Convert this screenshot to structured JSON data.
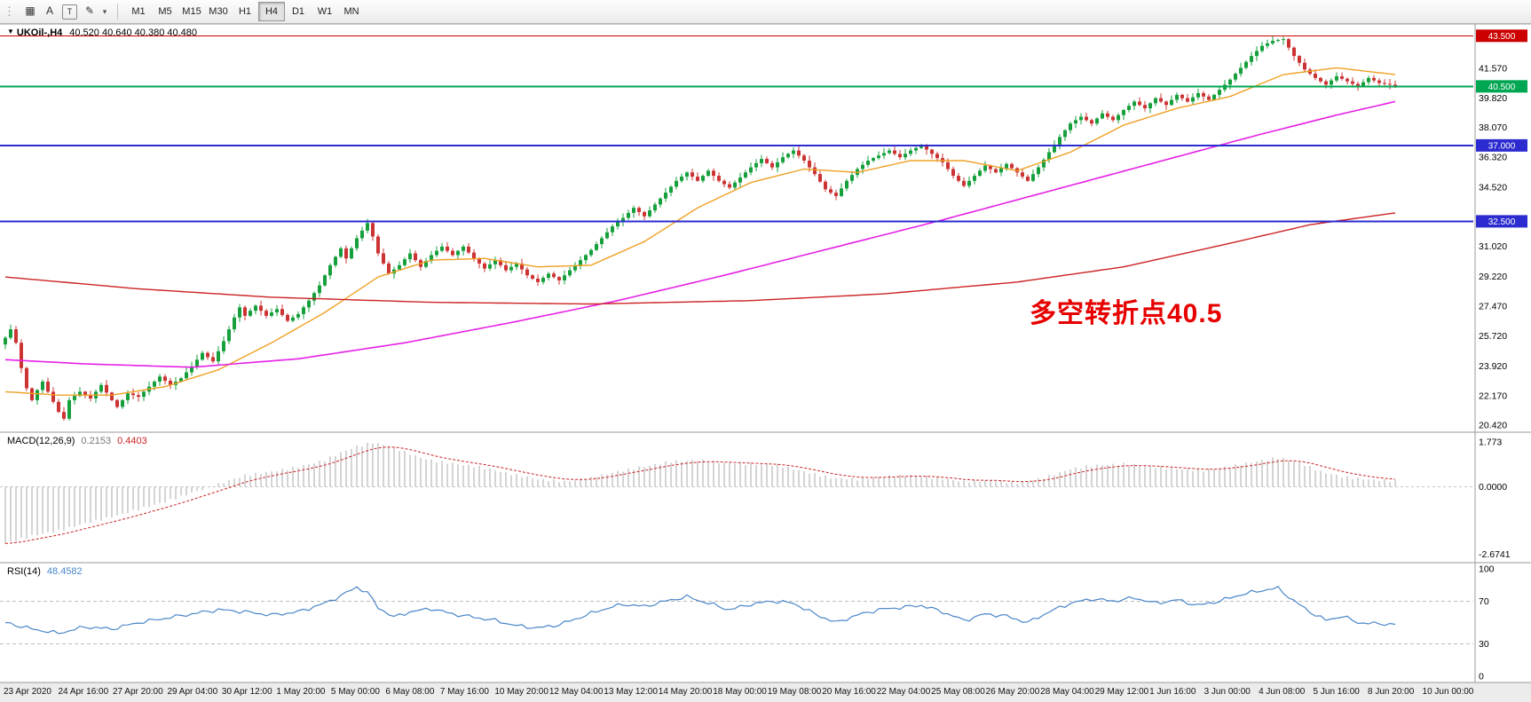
{
  "toolbar": {
    "grip": "⋮",
    "icons": [
      {
        "name": "charts-grid-icon",
        "glyph": "▦",
        "boxed": false
      },
      {
        "name": "text-label-icon",
        "glyph": "A",
        "boxed": false
      },
      {
        "name": "text-box-icon",
        "glyph": "T",
        "boxed": true
      },
      {
        "name": "draw-tools-icon",
        "glyph": "✎",
        "boxed": false
      },
      {
        "name": "draw-tools-caret-icon",
        "glyph": "▾",
        "boxed": false
      }
    ],
    "timeframes": [
      "M1",
      "M5",
      "M15",
      "M30",
      "H1",
      "H4",
      "D1",
      "W1",
      "MN"
    ],
    "active_timeframe": "H4"
  },
  "header": {
    "menu_icon": "▼",
    "symbol": "UKOil-,H4",
    "ohlc": "40.520 40.640 40.380 40.480"
  },
  "macd_header": {
    "name": "MACD(12,26,9)",
    "main": "0.2153",
    "signal": "0.4403"
  },
  "rsi_header": {
    "name": "RSI(14)",
    "value": "48.4582"
  },
  "annotation": {
    "text": "多空转折点40.5",
    "color": "#e60000"
  },
  "colors": {
    "up": "#16a03c",
    "down": "#cc3333",
    "ma_fast": "#efa024",
    "ma_mid": "#e621e6",
    "ma_slow": "#cc2222",
    "macd_hist": "#a9a9a9",
    "macd_signal": "#cc2222",
    "macd_zero": "#c8c8c8",
    "rsi_line": "#4a86c8",
    "rsi_level": "#bbbbbb",
    "badge_text": "#ffffff",
    "axis_text": "#000000",
    "border": "#999999",
    "timeline_bg": "#ececec"
  },
  "chart_data": {
    "type": "candlestick",
    "title": "UKOil-,H4",
    "symbol": "UKOil-",
    "timeframe": "H4",
    "ohlc_current": {
      "open": 40.52,
      "high": 40.64,
      "low": 40.38,
      "close": 40.48
    },
    "bars": 262,
    "price_range": [
      20.0,
      44.2
    ],
    "close_waypoints": [
      [
        0,
        25.6
      ],
      [
        1,
        26.1
      ],
      [
        2,
        25.3
      ],
      [
        3,
        23.8
      ],
      [
        4,
        22.6
      ],
      [
        5,
        21.9
      ],
      [
        6,
        22.5
      ],
      [
        7,
        23.0
      ],
      [
        8,
        22.4
      ],
      [
        10,
        21.2
      ],
      [
        11,
        20.8
      ],
      [
        12,
        21.9
      ],
      [
        14,
        22.4
      ],
      [
        16,
        22.0
      ],
      [
        18,
        22.8
      ],
      [
        20,
        21.9
      ],
      [
        21,
        21.5
      ],
      [
        23,
        22.3
      ],
      [
        25,
        22.1
      ],
      [
        27,
        22.7
      ],
      [
        29,
        23.3
      ],
      [
        31,
        22.8
      ],
      [
        33,
        23.2
      ],
      [
        35,
        23.9
      ],
      [
        37,
        24.7
      ],
      [
        39,
        24.2
      ],
      [
        41,
        25.4
      ],
      [
        43,
        26.8
      ],
      [
        44,
        27.4
      ],
      [
        45,
        26.9
      ],
      [
        47,
        27.5
      ],
      [
        49,
        26.9
      ],
      [
        51,
        27.3
      ],
      [
        53,
        26.6
      ],
      [
        55,
        27.0
      ],
      [
        57,
        27.8
      ],
      [
        59,
        28.7
      ],
      [
        61,
        29.9
      ],
      [
        63,
        30.9
      ],
      [
        64,
        30.3
      ],
      [
        66,
        31.5
      ],
      [
        68,
        32.4
      ],
      [
        69,
        31.6
      ],
      [
        70,
        30.6
      ],
      [
        72,
        29.4
      ],
      [
        74,
        29.9
      ],
      [
        76,
        30.6
      ],
      [
        78,
        29.8
      ],
      [
        80,
        30.5
      ],
      [
        82,
        31.0
      ],
      [
        84,
        30.5
      ],
      [
        86,
        31.0
      ],
      [
        88,
        30.3
      ],
      [
        90,
        29.7
      ],
      [
        92,
        30.2
      ],
      [
        94,
        29.6
      ],
      [
        96,
        30.0
      ],
      [
        98,
        29.3
      ],
      [
        100,
        28.9
      ],
      [
        102,
        29.4
      ],
      [
        104,
        29.0
      ],
      [
        106,
        29.6
      ],
      [
        108,
        30.2
      ],
      [
        110,
        30.8
      ],
      [
        112,
        31.5
      ],
      [
        114,
        32.2
      ],
      [
        116,
        32.7
      ],
      [
        118,
        33.3
      ],
      [
        120,
        32.8
      ],
      [
        122,
        33.5
      ],
      [
        124,
        34.2
      ],
      [
        126,
        34.9
      ],
      [
        128,
        35.4
      ],
      [
        130,
        34.9
      ],
      [
        132,
        35.5
      ],
      [
        134,
        34.9
      ],
      [
        136,
        34.5
      ],
      [
        138,
        35.1
      ],
      [
        140,
        35.7
      ],
      [
        142,
        36.2
      ],
      [
        144,
        35.7
      ],
      [
        146,
        36.3
      ],
      [
        148,
        36.7
      ],
      [
        150,
        36.1
      ],
      [
        152,
        35.3
      ],
      [
        154,
        34.4
      ],
      [
        156,
        34.0
      ],
      [
        158,
        34.9
      ],
      [
        160,
        35.6
      ],
      [
        162,
        36.1
      ],
      [
        164,
        36.4
      ],
      [
        166,
        36.7
      ],
      [
        168,
        36.3
      ],
      [
        170,
        36.7
      ],
      [
        172,
        37.0
      ],
      [
        174,
        36.5
      ],
      [
        176,
        36.0
      ],
      [
        178,
        35.2
      ],
      [
        180,
        34.6
      ],
      [
        182,
        35.2
      ],
      [
        184,
        35.8
      ],
      [
        186,
        35.4
      ],
      [
        188,
        35.9
      ],
      [
        190,
        35.4
      ],
      [
        192,
        34.9
      ],
      [
        194,
        35.7
      ],
      [
        196,
        36.6
      ],
      [
        198,
        37.5
      ],
      [
        200,
        38.3
      ],
      [
        202,
        38.7
      ],
      [
        204,
        38.3
      ],
      [
        206,
        38.9
      ],
      [
        208,
        38.5
      ],
      [
        210,
        39.1
      ],
      [
        212,
        39.6
      ],
      [
        214,
        39.2
      ],
      [
        216,
        39.8
      ],
      [
        218,
        39.4
      ],
      [
        220,
        40.0
      ],
      [
        222,
        39.6
      ],
      [
        224,
        40.1
      ],
      [
        226,
        39.7
      ],
      [
        228,
        40.3
      ],
      [
        230,
        40.9
      ],
      [
        232,
        41.6
      ],
      [
        234,
        42.3
      ],
      [
        236,
        42.9
      ],
      [
        238,
        43.2
      ],
      [
        240,
        43.3
      ],
      [
        242,
        42.3
      ],
      [
        244,
        41.5
      ],
      [
        246,
        41.0
      ],
      [
        248,
        40.6
      ],
      [
        250,
        41.1
      ],
      [
        252,
        40.8
      ],
      [
        254,
        40.5
      ],
      [
        256,
        41.0
      ],
      [
        258,
        40.7
      ],
      [
        260,
        40.6
      ],
      [
        261,
        40.48
      ]
    ],
    "ma_fast_waypoints": [
      [
        0,
        22.4
      ],
      [
        10,
        22.2
      ],
      [
        20,
        22.2
      ],
      [
        30,
        22.7
      ],
      [
        40,
        23.7
      ],
      [
        50,
        25.3
      ],
      [
        60,
        27.1
      ],
      [
        70,
        29.2
      ],
      [
        80,
        30.2
      ],
      [
        90,
        30.3
      ],
      [
        100,
        29.8
      ],
      [
        110,
        29.9
      ],
      [
        120,
        31.3
      ],
      [
        130,
        33.3
      ],
      [
        140,
        34.8
      ],
      [
        150,
        35.6
      ],
      [
        160,
        35.4
      ],
      [
        170,
        36.1
      ],
      [
        180,
        36.1
      ],
      [
        190,
        35.5
      ],
      [
        200,
        36.6
      ],
      [
        210,
        38.2
      ],
      [
        220,
        39.2
      ],
      [
        230,
        39.9
      ],
      [
        240,
        41.2
      ],
      [
        250,
        41.6
      ],
      [
        261,
        41.2
      ]
    ],
    "ma_mid_waypoints": [
      [
        0,
        24.3
      ],
      [
        15,
        24.05
      ],
      [
        35,
        23.85
      ],
      [
        55,
        24.35
      ],
      [
        75,
        25.3
      ],
      [
        95,
        26.5
      ],
      [
        115,
        27.8
      ],
      [
        135,
        29.3
      ],
      [
        155,
        30.9
      ],
      [
        175,
        32.5
      ],
      [
        195,
        34.2
      ],
      [
        215,
        35.9
      ],
      [
        235,
        37.6
      ],
      [
        250,
        38.8
      ],
      [
        261,
        39.6
      ]
    ],
    "ma_slow_waypoints": [
      [
        0,
        29.2
      ],
      [
        25,
        28.5
      ],
      [
        50,
        28.0
      ],
      [
        80,
        27.7
      ],
      [
        110,
        27.6
      ],
      [
        140,
        27.8
      ],
      [
        165,
        28.2
      ],
      [
        190,
        28.9
      ],
      [
        210,
        29.8
      ],
      [
        230,
        31.2
      ],
      [
        245,
        32.3
      ],
      [
        261,
        33.0
      ]
    ],
    "levels": [
      {
        "price": 43.5,
        "label": "43.500",
        "color": "#cc0000",
        "width": 1
      },
      {
        "price": 40.5,
        "label": "40.500",
        "color": "#00a651",
        "width": 2
      },
      {
        "price": 37.0,
        "label": "37.000",
        "color": "#2b2bd0",
        "width": 2
      },
      {
        "price": 32.5,
        "label": "32.500",
        "color": "#2b2bd0",
        "width": 2
      }
    ],
    "price_axis": [
      [
        41.57,
        "41.570"
      ],
      [
        39.82,
        "39.820"
      ],
      [
        38.07,
        "38.070"
      ],
      [
        36.32,
        "36.320"
      ],
      [
        34.52,
        "34.520"
      ],
      [
        31.02,
        "31.020"
      ],
      [
        29.22,
        "29.220"
      ],
      [
        27.47,
        "27.470"
      ],
      [
        25.72,
        "25.720"
      ],
      [
        23.92,
        "23.920"
      ],
      [
        22.17,
        "22.170"
      ],
      [
        20.42,
        "20.420"
      ]
    ],
    "x_labels": [
      "23 Apr 2020",
      "24 Apr 16:00",
      "27 Apr 20:00",
      "29 Apr 04:00",
      "30 Apr 12:00",
      "1 May 20:00",
      "5 May 00:00",
      "6 May 08:00",
      "7 May 16:00",
      "10 May 20:00",
      "12 May 04:00",
      "13 May 12:00",
      "14 May 20:00",
      "18 May 00:00",
      "19 May 08:00",
      "20 May 16:00",
      "22 May 04:00",
      "25 May 08:00",
      "26 May 20:00",
      "28 May 04:00",
      "29 May 12:00",
      "1 Jun 16:00",
      "3 Jun 00:00",
      "4 Jun 08:00",
      "5 Jun 16:00",
      "8 Jun 20:00",
      "10 Jun 00:00"
    ],
    "macd": {
      "label": "MACD(12,26,9)",
      "main": 0.2153,
      "signal": 0.4403,
      "range": [
        -2.8,
        1.95
      ],
      "axis": [
        [
          1.773,
          "1.773"
        ],
        [
          0,
          "0.0000"
        ],
        [
          -2.6741,
          "-2.6741"
        ]
      ],
      "main_waypoints": [
        [
          0,
          -2.25
        ],
        [
          5,
          -1.95
        ],
        [
          10,
          -1.75
        ],
        [
          15,
          -1.45
        ],
        [
          20,
          -1.2
        ],
        [
          25,
          -0.9
        ],
        [
          30,
          -0.6
        ],
        [
          35,
          -0.25
        ],
        [
          40,
          0.1
        ],
        [
          45,
          0.45
        ],
        [
          50,
          0.6
        ],
        [
          55,
          0.78
        ],
        [
          60,
          1.05
        ],
        [
          63,
          1.35
        ],
        [
          66,
          1.6
        ],
        [
          69,
          1.75
        ],
        [
          72,
          1.62
        ],
        [
          75,
          1.38
        ],
        [
          78,
          1.15
        ],
        [
          81,
          1.0
        ],
        [
          85,
          0.9
        ],
        [
          90,
          0.75
        ],
        [
          95,
          0.5
        ],
        [
          100,
          0.3
        ],
        [
          105,
          0.2
        ],
        [
          110,
          0.35
        ],
        [
          115,
          0.6
        ],
        [
          120,
          0.8
        ],
        [
          125,
          1.0
        ],
        [
          130,
          1.05
        ],
        [
          135,
          0.95
        ],
        [
          140,
          0.9
        ],
        [
          145,
          0.85
        ],
        [
          150,
          0.6
        ],
        [
          155,
          0.35
        ],
        [
          160,
          0.3
        ],
        [
          165,
          0.4
        ],
        [
          170,
          0.45
        ],
        [
          175,
          0.35
        ],
        [
          180,
          0.2
        ],
        [
          185,
          0.25
        ],
        [
          190,
          0.15
        ],
        [
          195,
          0.35
        ],
        [
          200,
          0.7
        ],
        [
          205,
          0.85
        ],
        [
          210,
          0.9
        ],
        [
          215,
          0.8
        ],
        [
          220,
          0.7
        ],
        [
          225,
          0.65
        ],
        [
          230,
          0.8
        ],
        [
          235,
          1.0
        ],
        [
          239,
          1.15
        ],
        [
          243,
          0.95
        ],
        [
          247,
          0.6
        ],
        [
          251,
          0.4
        ],
        [
          255,
          0.3
        ],
        [
          261,
          0.2153
        ]
      ]
    },
    "rsi": {
      "label": "RSI(14)",
      "value": 48.4582,
      "range": [
        0,
        100
      ],
      "levels": [
        70,
        30
      ],
      "axis": [
        [
          100,
          "100"
        ],
        [
          70,
          "70"
        ],
        [
          30,
          "30"
        ],
        [
          0,
          "0"
        ]
      ],
      "waypoints": [
        [
          0,
          50
        ],
        [
          5,
          44
        ],
        [
          10,
          40
        ],
        [
          15,
          46
        ],
        [
          20,
          44
        ],
        [
          25,
          50
        ],
        [
          30,
          54
        ],
        [
          35,
          58
        ],
        [
          40,
          62
        ],
        [
          45,
          60
        ],
        [
          50,
          57
        ],
        [
          55,
          60
        ],
        [
          60,
          68
        ],
        [
          63,
          75
        ],
        [
          66,
          83
        ],
        [
          68,
          78
        ],
        [
          70,
          64
        ],
        [
          73,
          55
        ],
        [
          76,
          60
        ],
        [
          80,
          63
        ],
        [
          84,
          58
        ],
        [
          88,
          55
        ],
        [
          92,
          52
        ],
        [
          96,
          47
        ],
        [
          100,
          45
        ],
        [
          104,
          48
        ],
        [
          108,
          55
        ],
        [
          112,
          62
        ],
        [
          116,
          67
        ],
        [
          120,
          65
        ],
        [
          124,
          70
        ],
        [
          128,
          74
        ],
        [
          132,
          68
        ],
        [
          136,
          62
        ],
        [
          140,
          67
        ],
        [
          144,
          70
        ],
        [
          148,
          68
        ],
        [
          152,
          58
        ],
        [
          156,
          50
        ],
        [
          160,
          57
        ],
        [
          164,
          62
        ],
        [
          168,
          64
        ],
        [
          172,
          66
        ],
        [
          176,
          60
        ],
        [
          180,
          52
        ],
        [
          184,
          58
        ],
        [
          188,
          56
        ],
        [
          192,
          50
        ],
        [
          196,
          60
        ],
        [
          200,
          68
        ],
        [
          204,
          72
        ],
        [
          208,
          70
        ],
        [
          212,
          73
        ],
        [
          216,
          68
        ],
        [
          220,
          71
        ],
        [
          224,
          66
        ],
        [
          228,
          70
        ],
        [
          232,
          76
        ],
        [
          236,
          80
        ],
        [
          239,
          82
        ],
        [
          242,
          70
        ],
        [
          245,
          60
        ],
        [
          248,
          52
        ],
        [
          251,
          56
        ],
        [
          254,
          50
        ],
        [
          257,
          49
        ],
        [
          261,
          48.46
        ]
      ]
    }
  }
}
